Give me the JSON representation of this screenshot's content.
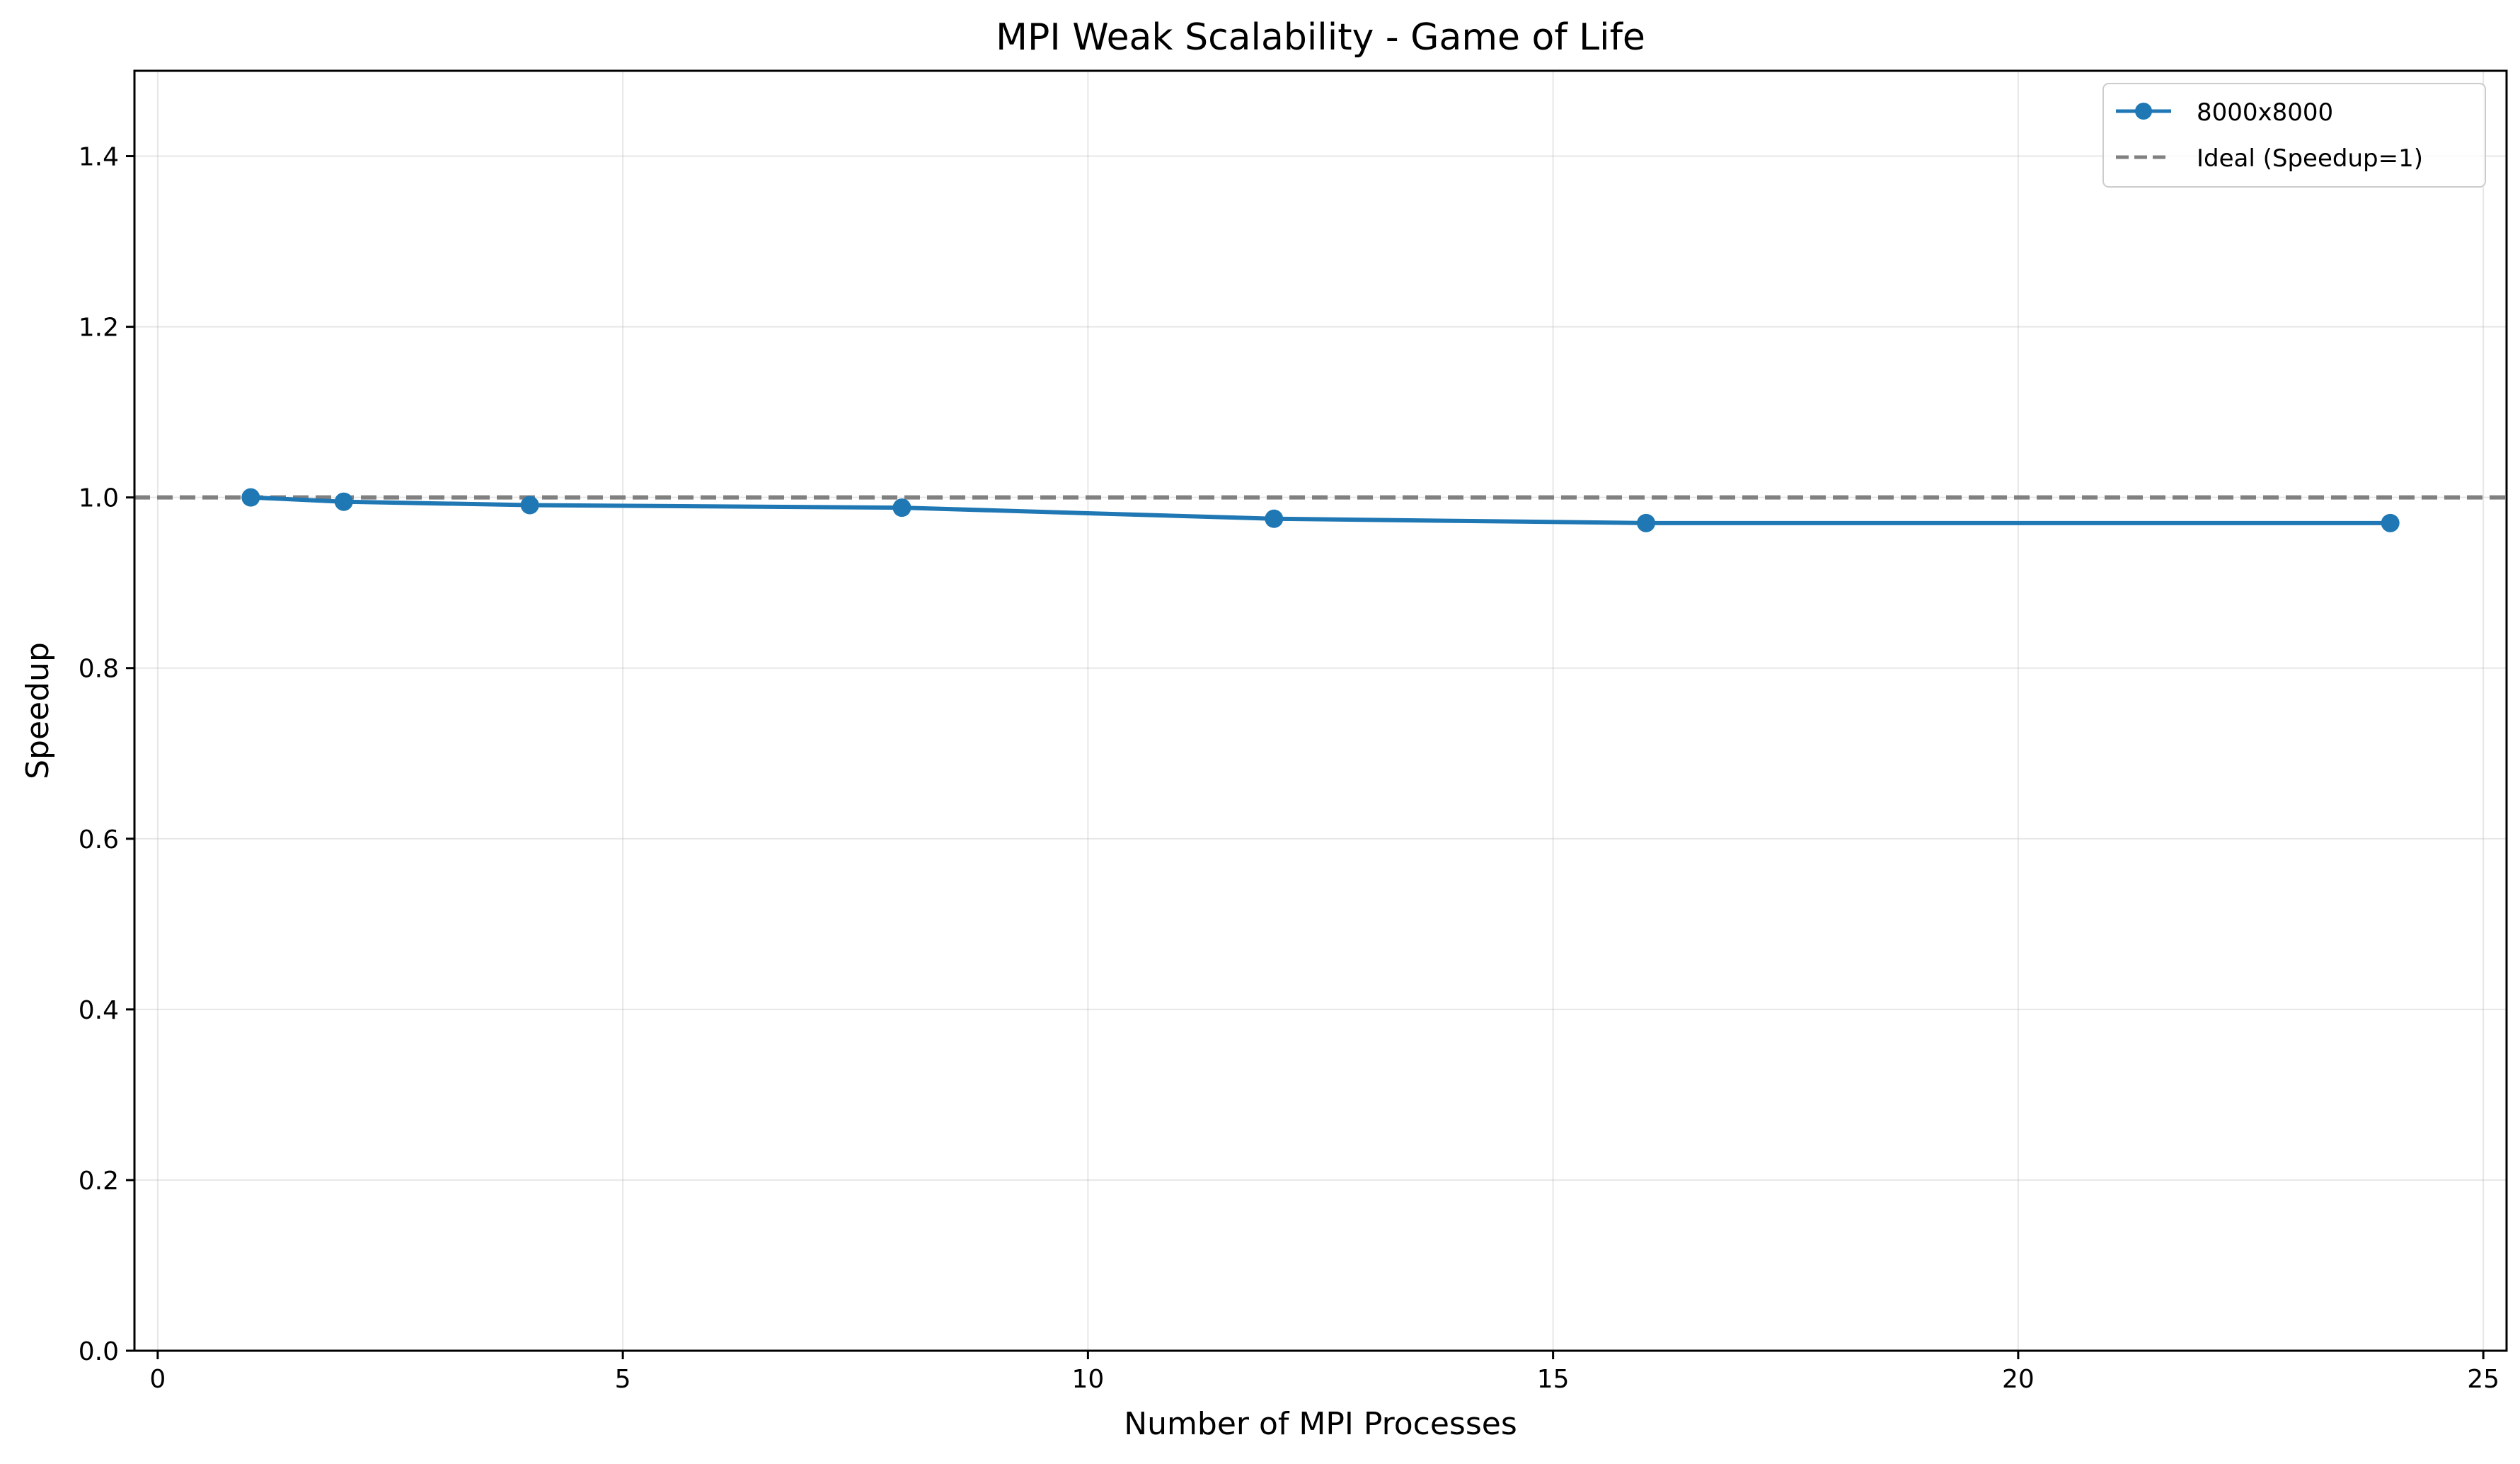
{
  "chart_data": {
    "type": "line",
    "title": "MPI Weak Scalability - Game of Life",
    "xlabel": "Number of MPI Processes",
    "ylabel": "Speedup",
    "xlim": [
      -0.25,
      25.25
    ],
    "ylim": [
      0.0,
      1.5
    ],
    "xticks": [
      0,
      5,
      10,
      15,
      20,
      25
    ],
    "yticks": [
      0.0,
      0.2,
      0.4,
      0.6,
      0.8,
      1.0,
      1.2,
      1.4
    ],
    "xtick_labels": [
      "0",
      "5",
      "10",
      "15",
      "20",
      "25"
    ],
    "ytick_labels": [
      "0.0",
      "0.2",
      "0.4",
      "0.6",
      "0.8",
      "1.0",
      "1.2",
      "1.4"
    ],
    "grid": true,
    "legend_position": "top-right",
    "series": [
      {
        "name": "8000x8000",
        "x": [
          1,
          2,
          4,
          8,
          12,
          16,
          24
        ],
        "y": [
          1.0,
          0.995,
          0.991,
          0.988,
          0.975,
          0.97,
          0.97
        ],
        "color": "#1f77b4",
        "style": "solid",
        "marker": "circle"
      }
    ],
    "reference_lines": [
      {
        "name": "Ideal (Speedup=1)",
        "y": 1.0,
        "color": "#808080",
        "style": "dashed"
      }
    ]
  }
}
